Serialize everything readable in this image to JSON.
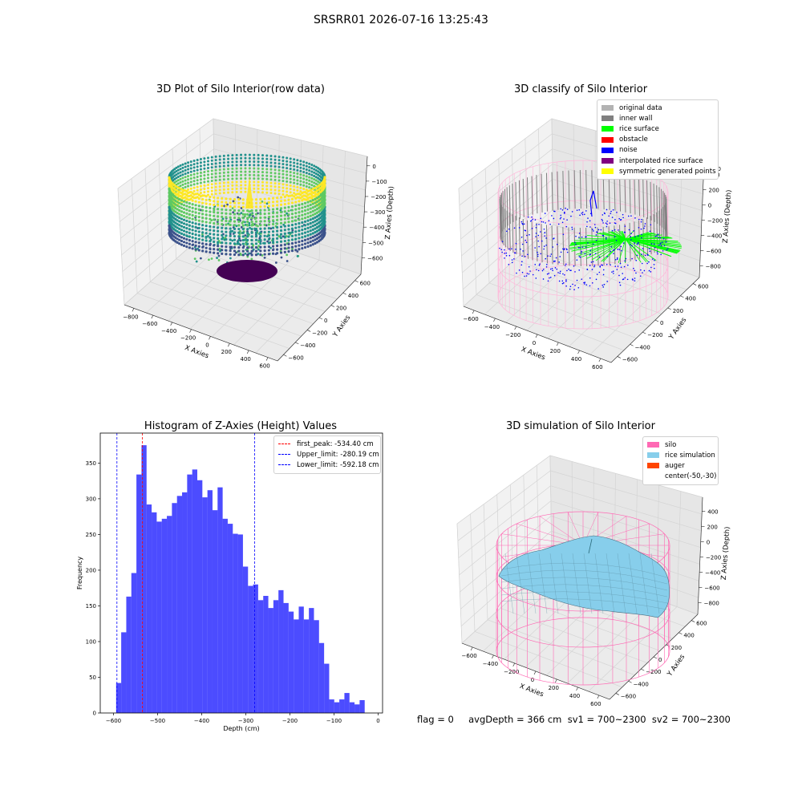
{
  "figure": {
    "suptitle": "SRSRR01 2026-07-16 13:25:43"
  },
  "panels": {
    "raw": {
      "title": "3D Plot of Silo Interior(row data)",
      "xlabel": "X Axies",
      "ylabel": "Y Axies",
      "zlabel": "Z Axies (Depth)",
      "xticks": [
        "−800",
        "−600",
        "−400",
        "−200",
        "0",
        "200",
        "400",
        "600"
      ],
      "yticks": [
        "−600",
        "−400",
        "−200",
        "0",
        "200",
        "400",
        "600"
      ],
      "zticks": [
        "0",
        "−100",
        "−200",
        "−300",
        "−400",
        "−500",
        "−600"
      ],
      "colormap": [
        "#440154",
        "#3b528b",
        "#21918c",
        "#5ec962",
        "#fde725"
      ]
    },
    "classify": {
      "title": "3D classify of Silo Interior",
      "xlabel": "X Axies",
      "ylabel": "Y Axies",
      "zlabel": "Z Axies (Depth)",
      "xticks": [
        "−600",
        "−400",
        "−200",
        "0",
        "200",
        "400",
        "600"
      ],
      "yticks": [
        "−600",
        "−400",
        "−200",
        "0",
        "200",
        "400",
        "600"
      ],
      "zticks": [
        "400",
        "200",
        "0",
        "−200",
        "−400",
        "−600",
        "−800"
      ],
      "legend": [
        {
          "label": "original data",
          "color": "#b3b3b3"
        },
        {
          "label": "inner wall",
          "color": "#808080"
        },
        {
          "label": "rice surface",
          "color": "#00ff00"
        },
        {
          "label": "obstacle",
          "color": "#ff0000"
        },
        {
          "label": "noise",
          "color": "#0000ff"
        },
        {
          "label": "interpolated rice surface",
          "color": "#800080"
        },
        {
          "label": "symmetric generated points",
          "color": "#ffff00"
        }
      ],
      "partial_ztick": "00"
    },
    "simulation": {
      "title": "3D simulation of Silo Interior",
      "xlabel": "X Axies",
      "ylabel": "Y Axies",
      "zlabel": "Z Axies (Depth)",
      "xticks": [
        "−600",
        "−400",
        "−200",
        "0",
        "200",
        "400",
        "600"
      ],
      "yticks": [
        "−600",
        "−400",
        "−200",
        "0",
        "200",
        "400",
        "600"
      ],
      "zticks": [
        "400",
        "200",
        "0",
        "−200",
        "−400",
        "−600",
        "−800"
      ],
      "legend": [
        {
          "label": "silo",
          "color": "#ff69b4"
        },
        {
          "label": "rice simulation",
          "color": "#87ceeb"
        },
        {
          "label": "auger",
          "color": "#ff4500"
        },
        {
          "label": "center(-50,-30)",
          "color": ""
        }
      ]
    }
  },
  "status_text": "flag = 0     avgDepth = 366 cm  sv1 = 700~2300  sv2 = 700~2300",
  "chart_data": [
    {
      "type": "bar",
      "title": "Histogram of Z-Axies (Height) Values",
      "xlabel": "Depth (cm)",
      "ylabel": "Frequency",
      "xlim": [
        -630,
        10
      ],
      "ylim": [
        0,
        392
      ],
      "xticks": [
        -600,
        -500,
        -400,
        -300,
        -200,
        -100,
        0
      ],
      "yticks": [
        0,
        50,
        100,
        150,
        200,
        250,
        300,
        350
      ],
      "bar_color": "#0000ff",
      "bin_start": -594,
      "bin_width": 11.5,
      "values": [
        42,
        113,
        163,
        196,
        334,
        375,
        292,
        281,
        268,
        272,
        276,
        294,
        304,
        309,
        334,
        341,
        326,
        302,
        312,
        284,
        316,
        272,
        265,
        251,
        250,
        205,
        178,
        180,
        158,
        164,
        147,
        158,
        172,
        154,
        142,
        131,
        149,
        131,
        147,
        130,
        98,
        69,
        19,
        15,
        19,
        28,
        15,
        12,
        18
      ],
      "reference_lines": [
        {
          "label": "first_peak: -534.40 cm",
          "value": -534.4,
          "color": "#ff0000"
        },
        {
          "label": "Upper_limit: -280.19 cm",
          "value": -280.19,
          "color": "#0000ff"
        },
        {
          "label": "Lower_limit: -592.18 cm",
          "value": -592.18,
          "color": "#0000ff"
        }
      ],
      "legend_position": "upper right"
    }
  ]
}
